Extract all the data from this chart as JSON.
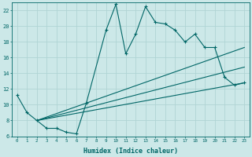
{
  "xlabel": "Humidex (Indice chaleur)",
  "bg_color": "#cce8e8",
  "grid_color": "#b0d4d4",
  "line_color": "#006666",
  "xlim": [
    -0.5,
    23.5
  ],
  "ylim": [
    6,
    23
  ],
  "xticks": [
    0,
    1,
    2,
    3,
    4,
    5,
    6,
    7,
    8,
    9,
    10,
    11,
    12,
    13,
    14,
    15,
    16,
    17,
    18,
    19,
    20,
    21,
    22,
    23
  ],
  "yticks": [
    6,
    8,
    10,
    12,
    14,
    16,
    18,
    20,
    22
  ],
  "jagged_x": [
    0,
    1,
    2,
    3,
    4,
    5,
    6,
    7,
    9,
    10,
    11,
    12,
    13,
    14,
    15,
    16,
    17,
    18,
    19,
    20,
    21,
    22,
    23
  ],
  "jagged_y": [
    11.2,
    9.0,
    8.0,
    7.0,
    7.0,
    6.5,
    6.3,
    10.2,
    19.5,
    22.8,
    16.5,
    19.0,
    22.5,
    20.5,
    20.3,
    19.5,
    18.0,
    19.0,
    17.3,
    17.3,
    13.5,
    12.5,
    12.8
  ],
  "line1_x": [
    2,
    23
  ],
  "line1_y": [
    8.0,
    12.8
  ],
  "line2_x": [
    2,
    23
  ],
  "line2_y": [
    8.0,
    14.8
  ],
  "line3_x": [
    2,
    23
  ],
  "line3_y": [
    8.0,
    17.3
  ],
  "figwidth": 3.2,
  "figheight": 2.0,
  "dpi": 100
}
